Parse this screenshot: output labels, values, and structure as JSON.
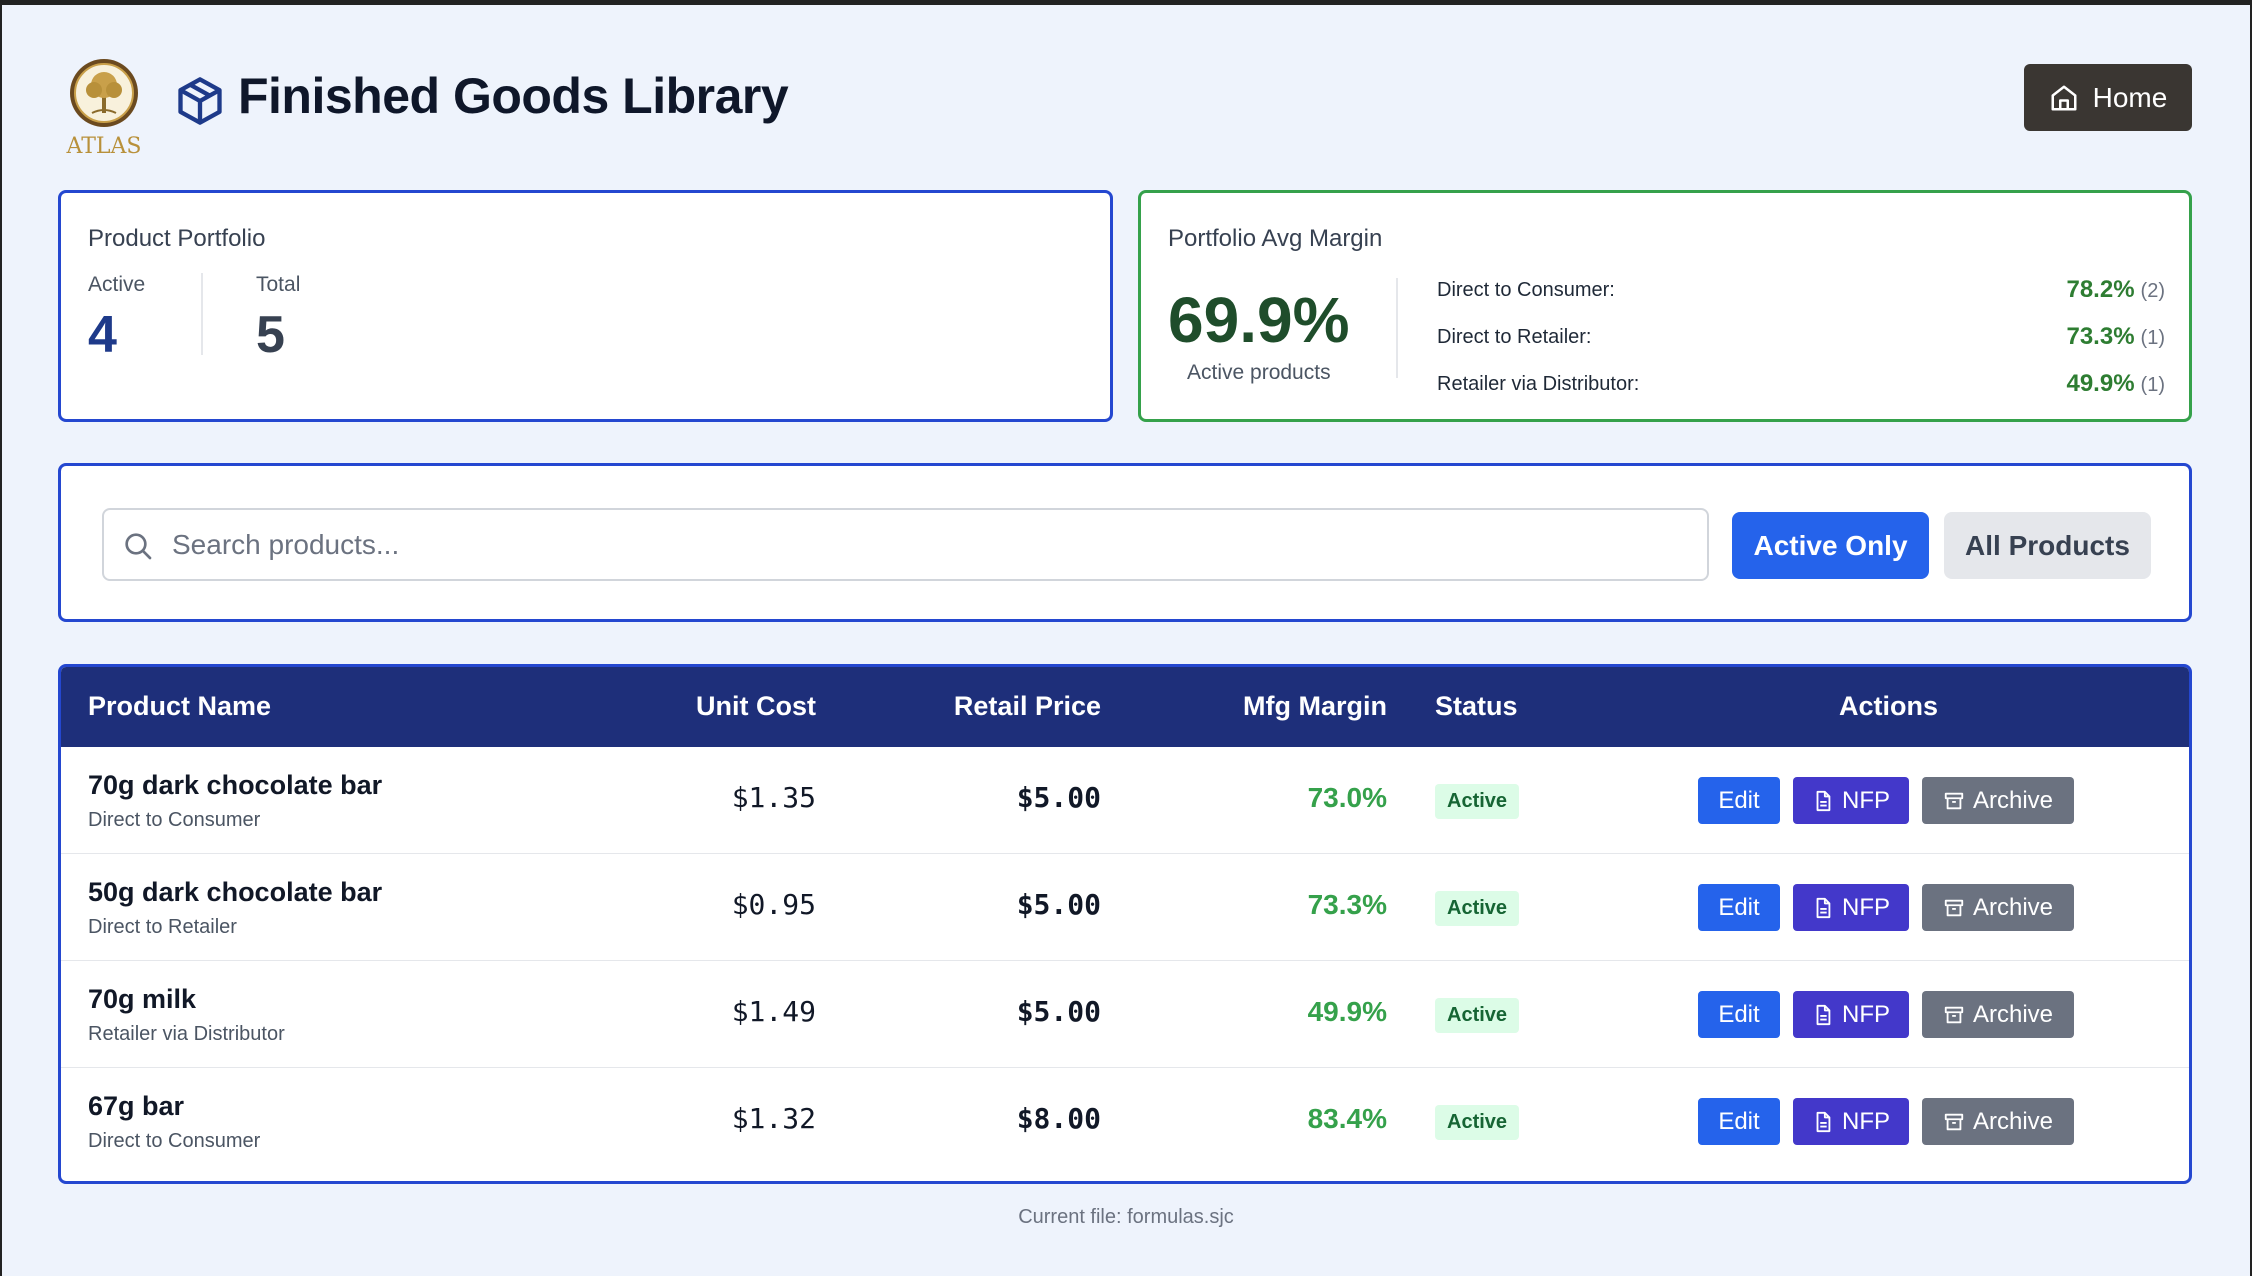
{
  "logo": {
    "text": "ATLAS"
  },
  "header": {
    "title": "Finished Goods Library",
    "home_label": "Home"
  },
  "portfolio": {
    "label": "Product Portfolio",
    "active_label": "Active",
    "active_value": "4",
    "total_label": "Total",
    "total_value": "5"
  },
  "margin": {
    "label": "Portfolio Avg Margin",
    "value": "69.9%",
    "sub": "Active products",
    "channels": [
      {
        "name": "Direct to Consumer:",
        "pct": "78.2%",
        "count": "(2)"
      },
      {
        "name": "Direct to Retailer:",
        "pct": "73.3%",
        "count": "(1)"
      },
      {
        "name": "Retailer via Distributor:",
        "pct": "49.9%",
        "count": "(1)"
      }
    ]
  },
  "search": {
    "placeholder": "Search products...",
    "value": ""
  },
  "filters": {
    "active_only": "Active Only",
    "all_products": "All Products"
  },
  "table": {
    "headers": [
      "Product Name",
      "Unit Cost",
      "Retail Price",
      "Mfg Margin",
      "Status",
      "Actions"
    ],
    "rows": [
      {
        "name": "70g dark chocolate bar",
        "channel": "Direct to Consumer",
        "cost": "$1.35",
        "price": "$5.00",
        "margin": "73.0%",
        "status": "Active"
      },
      {
        "name": "50g dark chocolate bar",
        "channel": "Direct to Retailer",
        "cost": "$0.95",
        "price": "$5.00",
        "margin": "73.3%",
        "status": "Active"
      },
      {
        "name": "70g milk",
        "channel": "Retailer via Distributor",
        "cost": "$1.49",
        "price": "$5.00",
        "margin": "49.9%",
        "status": "Active"
      },
      {
        "name": "67g bar",
        "channel": "Direct to Consumer",
        "cost": "$1.32",
        "price": "$8.00",
        "margin": "83.4%",
        "status": "Active"
      }
    ],
    "actions": {
      "edit": "Edit",
      "nfp": "NFP",
      "archive": "Archive"
    }
  },
  "footer": {
    "text": "Current file: formulas.sjc"
  },
  "colors": {
    "primary": "#2563eb",
    "header_bg": "#1e2f7a",
    "margin_green": "#35a14b",
    "nfp": "#4338ca",
    "archive": "#6b7280",
    "home_btn": "#3a3632"
  }
}
